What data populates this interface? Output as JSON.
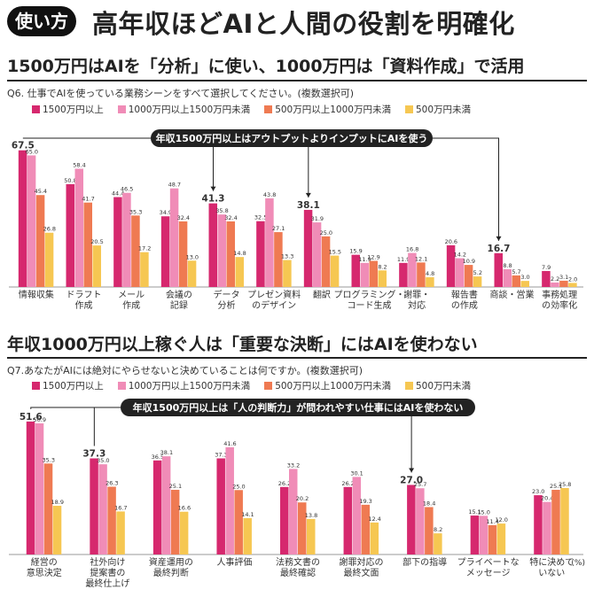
{
  "header": {
    "tag": "使い方",
    "title": "高年収ほどAIと人間の役割を明確化"
  },
  "colors": {
    "s1": "#d6286e",
    "s2": "#f08cb7",
    "s3": "#ef7a52",
    "s4": "#f6c752",
    "dark": "#222222"
  },
  "chart_data": [
    {
      "type": "bar",
      "section_title": "1500万円はAIを「分析」に使い、1000万円は「資料作成」で活用",
      "question": "Q6. 仕事でAIを使っている業務シーンをすべて選択してください。(複数選択可)",
      "callout": "年収1500万円以上はアウトプットよりインプットにAIを使う",
      "categories": [
        "情報収集",
        "ドラフト\n作成",
        "メール\n作成",
        "会議の\n記録",
        "データ\n分析",
        "プレゼン資料\nのデザイン",
        "翻訳",
        "プログラミング・\nコード生成",
        "謝罪・\n対応",
        "報告書\nの作成",
        "商談・営業",
        "事務処理\nの効率化"
      ],
      "series": [
        {
          "name": "1500万円以上",
          "values": [
            67.5,
            50.8,
            44.4,
            34.9,
            41.3,
            32.5,
            38.1,
            15.9,
            11.9,
            20.6,
            16.7,
            7.9
          ]
        },
        {
          "name": "1000万円以上1500万円未満",
          "values": [
            65.0,
            58.4,
            46.5,
            48.7,
            35.8,
            43.8,
            31.9,
            11.9,
            16.8,
            14.2,
            8.8,
            2.2
          ]
        },
        {
          "name": "500万円以上1000万円未満",
          "values": [
            45.4,
            41.7,
            35.3,
            32.4,
            32.4,
            27.1,
            25.0,
            12.9,
            12.1,
            10.9,
            5.7,
            3.1
          ]
        },
        {
          "name": "500万円未満",
          "values": [
            26.8,
            20.5,
            17.2,
            13.0,
            14.8,
            13.3,
            15.5,
            8.2,
            4.8,
            5.2,
            3.0,
            2.0
          ]
        }
      ],
      "highlighted": [
        0,
        4,
        6,
        10
      ],
      "ylim": [
        0,
        70
      ]
    },
    {
      "type": "bar",
      "section_title": "年収1000万円以上稼ぐ人は「重要な決断」にはAIを使わない",
      "question": "Q7.あなたがAIには絶対にやらせないと決めていることは何ですか。(複数選択可)",
      "callout": "年収1500万円以上は「人の判断力」が問われやすい仕事にはAIを使わない",
      "categories": [
        "経営の\n意思決定",
        "社外向け\n提案書の\n最終仕上げ",
        "資産運用の\n最終判断",
        "人事評価",
        "法務文書の\n最終確認",
        "謝罪対応の\n最終文面",
        "部下の指導",
        "プライベートな\nメッセージ",
        "特に決めて\nいない"
      ],
      "series": [
        {
          "name": "1500万円以上",
          "values": [
            51.6,
            37.3,
            36.5,
            37.3,
            26.2,
            26.2,
            27.0,
            15.1,
            23.0
          ]
        },
        {
          "name": "1000万円以上1500万円未満",
          "values": [
            50.9,
            35.0,
            38.1,
            41.6,
            33.2,
            30.1,
            25.7,
            15.0,
            20.4
          ]
        },
        {
          "name": "500万円以上1000万円未満",
          "values": [
            35.3,
            26.3,
            25.1,
            25.0,
            20.2,
            19.3,
            18.4,
            11.4,
            25.1
          ]
        },
        {
          "name": "500万円未満",
          "values": [
            18.9,
            16.7,
            16.6,
            14.1,
            13.8,
            12.4,
            8.2,
            12.0,
            25.8
          ]
        }
      ],
      "highlighted": [
        0,
        1,
        6
      ],
      "ylim": [
        0,
        55
      ],
      "unit": "(%)"
    }
  ]
}
